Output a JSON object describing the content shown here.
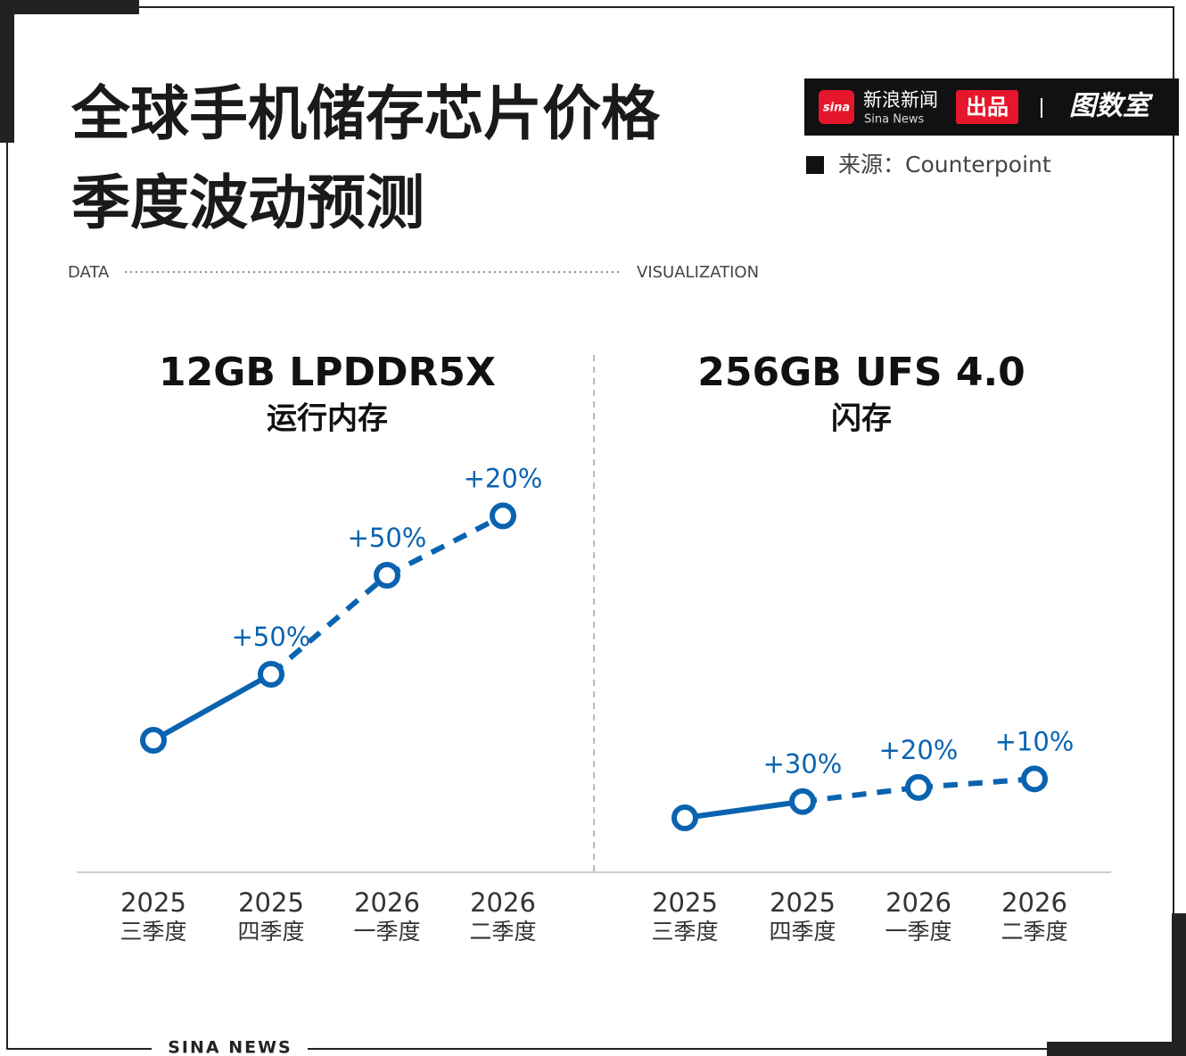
{
  "header": {
    "title_line1": "全球手机储存芯片价格",
    "title_line2": "季度波动预测",
    "brand": "新浪新闻",
    "brand_en": "Sina News",
    "brand_icon": "sina",
    "brand_tag": "出品",
    "logo": "图数室",
    "source": "来源：Counterpoint",
    "divider_left": "DATA",
    "divider_right": "VISUALIZATION"
  },
  "chart_data": [
    {
      "type": "line",
      "title": "12GB LPDDR5X",
      "subtitle": "运行内存",
      "categories": [
        {
          "year": "2025",
          "quarter": "三季度"
        },
        {
          "year": "2025",
          "quarter": "四季度"
        },
        {
          "year": "2026",
          "quarter": "一季度"
        },
        {
          "year": "2026",
          "quarter": "二季度"
        }
      ],
      "values": [
        null,
        50,
        50,
        20
      ],
      "value_labels": [
        null,
        "+50%",
        "+50%",
        "+20%"
      ],
      "color": "#0a63b0"
    },
    {
      "type": "line",
      "title": "256GB UFS 4.0",
      "subtitle": "闪存",
      "categories": [
        {
          "year": "2025",
          "quarter": "三季度"
        },
        {
          "year": "2025",
          "quarter": "四季度"
        },
        {
          "year": "2026",
          "quarter": "一季度"
        },
        {
          "year": "2026",
          "quarter": "二季度"
        }
      ],
      "values": [
        null,
        30,
        20,
        10
      ],
      "value_labels": [
        null,
        "+30%",
        "+20%",
        "+10%"
      ],
      "color": "#0a63b0"
    }
  ],
  "footer": "SINA NEWS"
}
